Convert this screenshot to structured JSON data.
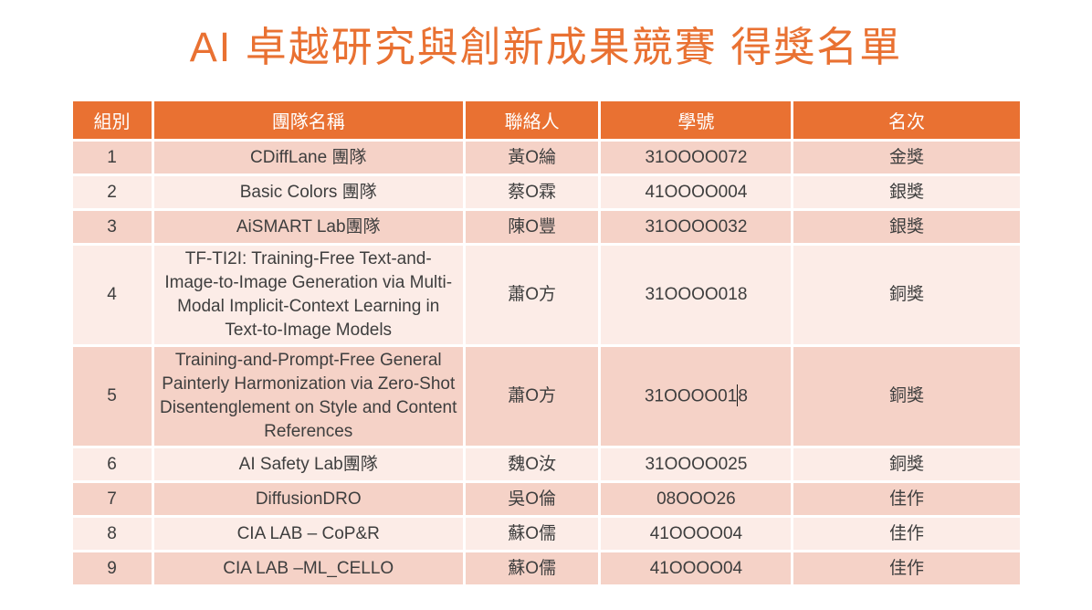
{
  "page": {
    "title": "AI 卓越研究與創新成果競賽 得獎名單"
  },
  "colors": {
    "accent_orange": "#E97132",
    "band_dark": "#F5D2C7",
    "band_light": "#FCECE7",
    "header_text": "#FFFFFF",
    "body_text": "#3E3E3E"
  },
  "table": {
    "columns": [
      "組別",
      "團隊名稱",
      "聯絡人",
      "學號",
      "名次"
    ],
    "rows": [
      {
        "group": "1",
        "team": "CDiffLane 團隊",
        "contact": "黃O綸",
        "student_id": "31OOOO072",
        "rank": "金獎",
        "caret": false
      },
      {
        "group": "2",
        "team": "Basic Colors  團隊",
        "contact": "蔡O霖",
        "student_id": "41OOOO004",
        "rank": "銀獎",
        "caret": false
      },
      {
        "group": "3",
        "team": "AiSMART Lab團隊",
        "contact": "陳O豐",
        "student_id": "31OOOO032",
        "rank": "銀獎",
        "caret": false
      },
      {
        "group": "4",
        "team": "TF-TI2I: Training-Free Text-and-Image-to-Image Generation via Multi-Modal Implicit-Context Learning in Text-to-Image Models",
        "contact": "蕭O方",
        "student_id": "31OOOO018",
        "rank": "銅獎",
        "caret": false
      },
      {
        "group": "5",
        "team": "Training-and-Prompt-Free General Painterly Harmonization via Zero-Shot Disentenglement on Style and Content References",
        "contact": "蕭O方",
        "student_id": "31OOOO018",
        "rank": "銅獎",
        "caret": true
      },
      {
        "group": "6",
        "team": "AI Safety Lab團隊",
        "contact": "魏O汝",
        "student_id": "31OOOO025",
        "rank": "銅獎",
        "caret": false
      },
      {
        "group": "7",
        "team": "DiffusionDRO",
        "contact": "吳O倫",
        "student_id": "08OOO26",
        "rank": "佳作",
        "caret": false
      },
      {
        "group": "8",
        "team": "CIA LAB – CoP&R",
        "contact": "蘇O儒",
        "student_id": "41OOOO04",
        "rank": "佳作",
        "caret": false
      },
      {
        "group": "9",
        "team": "CIA LAB –ML_CELLO",
        "contact": "蘇O儒",
        "student_id": "41OOOO04",
        "rank": "佳作",
        "caret": false
      }
    ]
  }
}
